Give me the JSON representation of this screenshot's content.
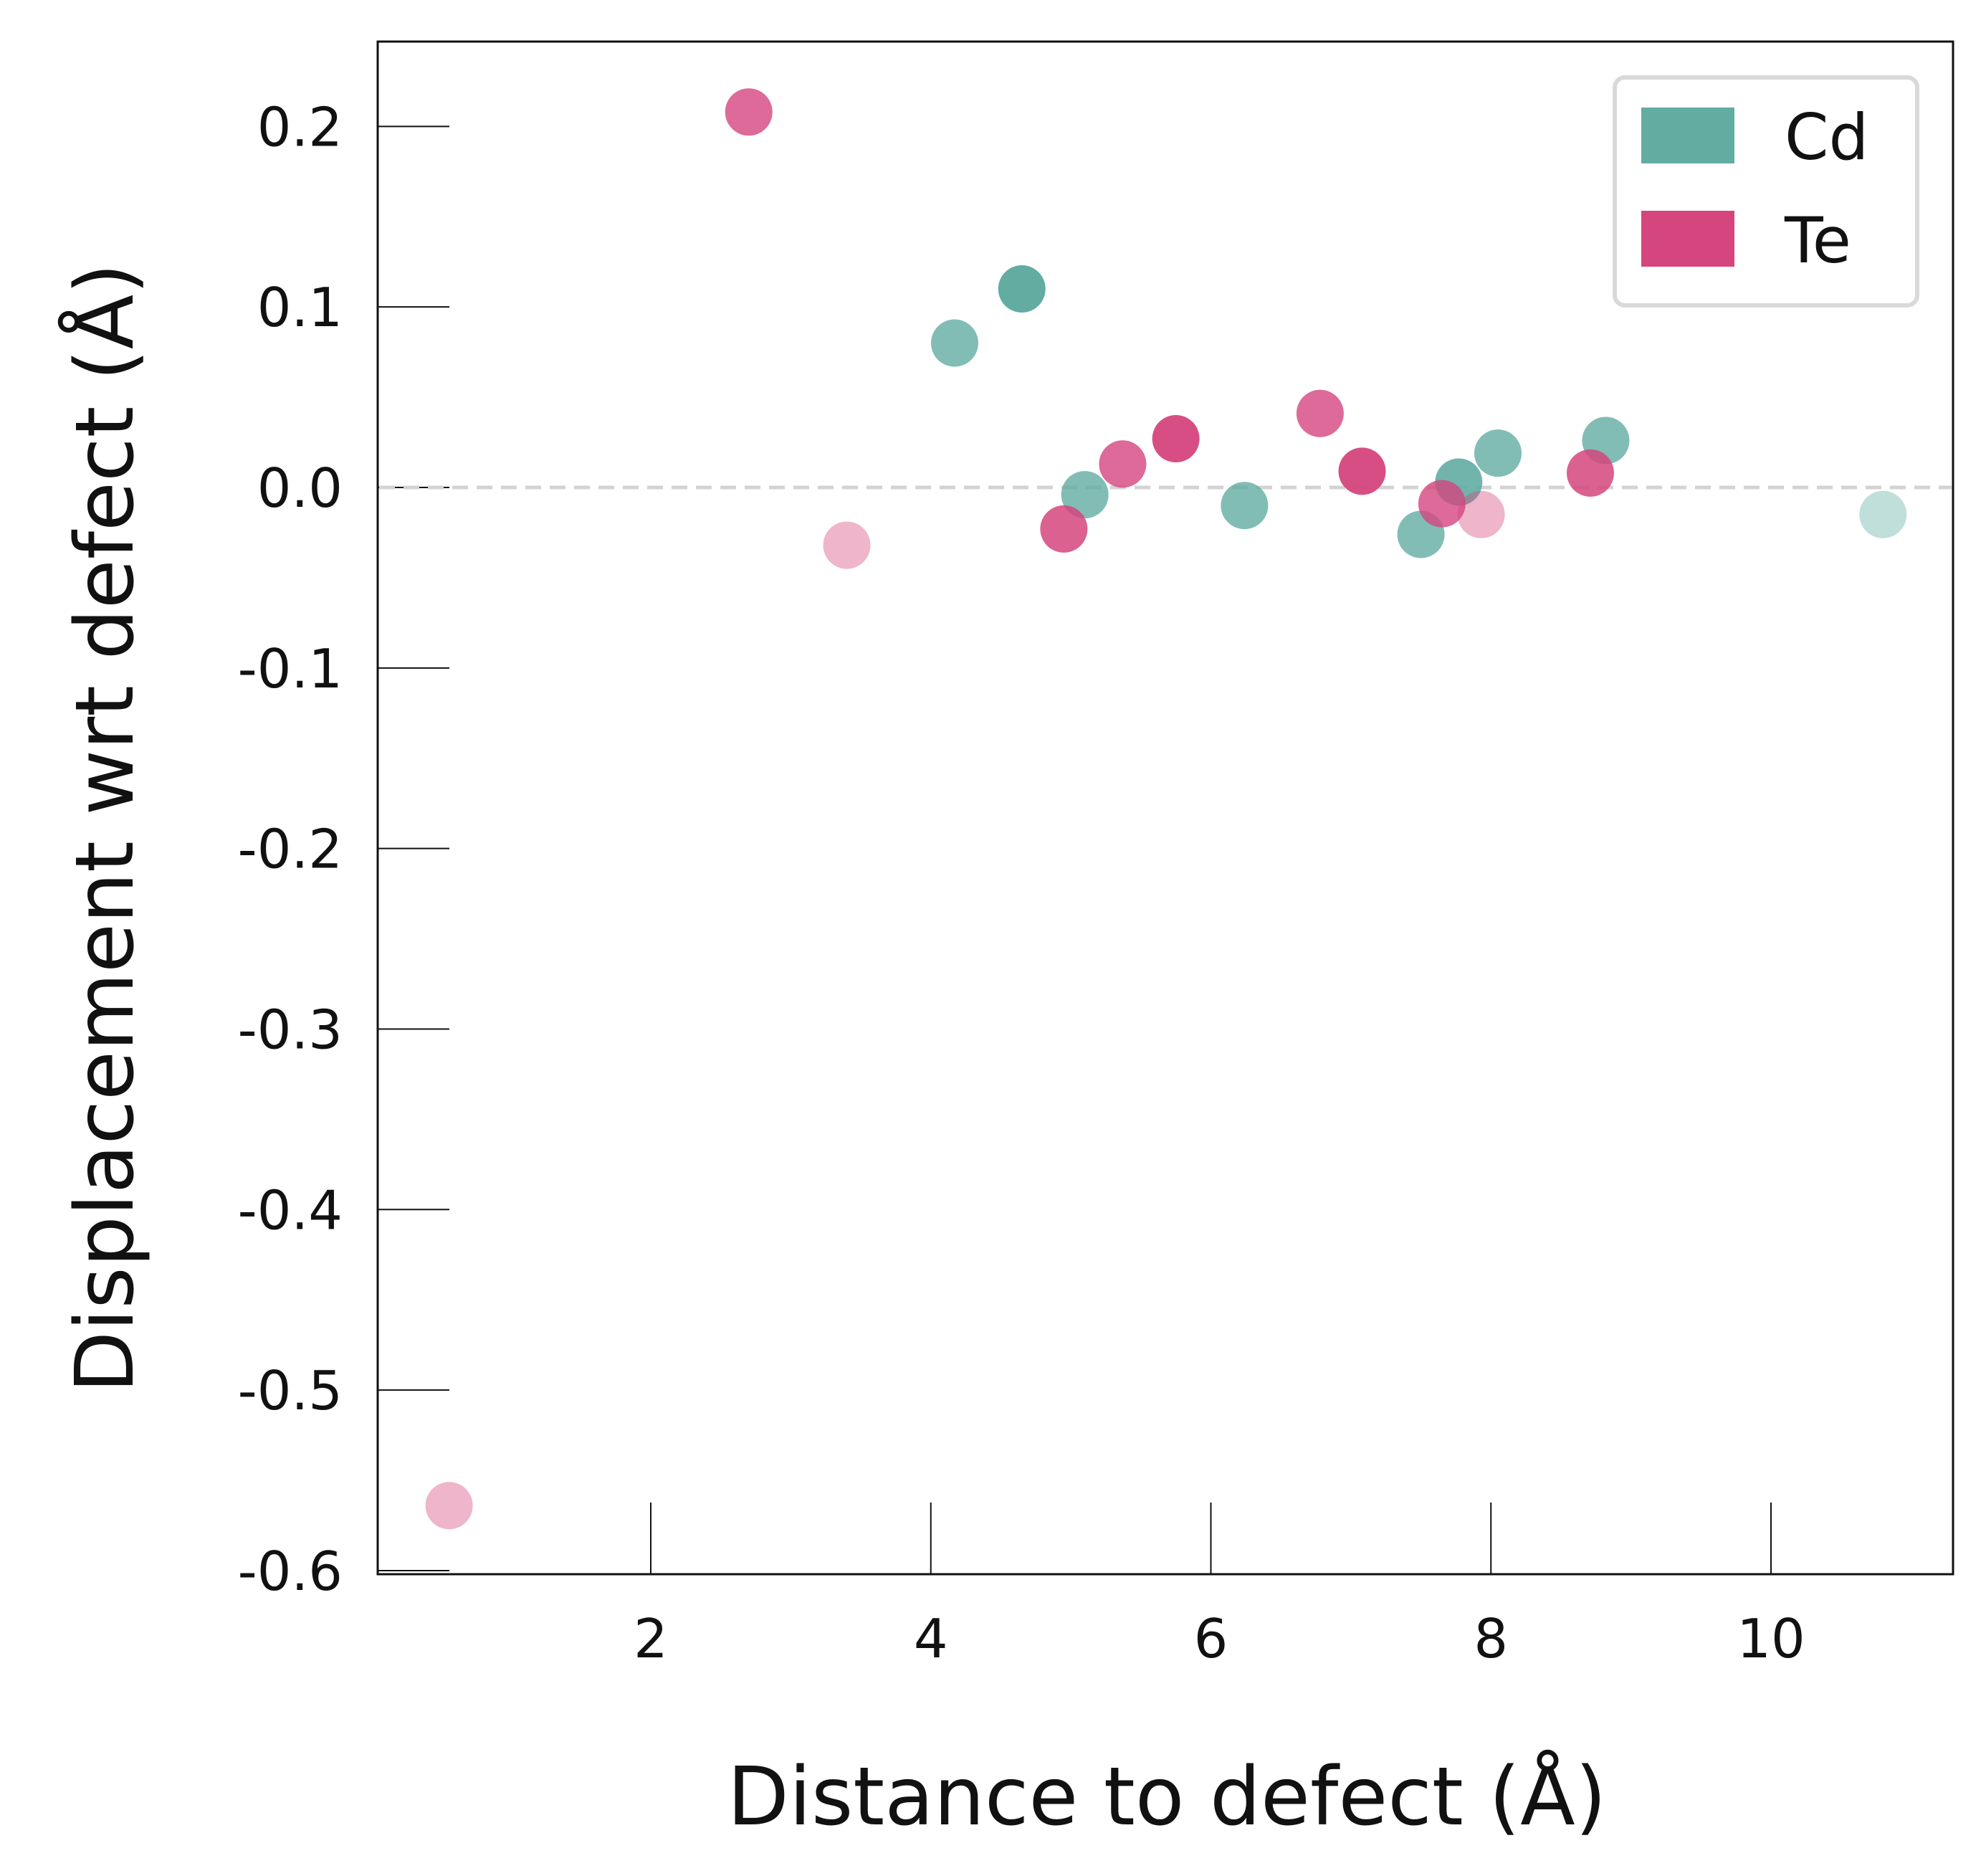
{
  "chart_data": {
    "type": "scatter",
    "xlabel": "Distance to defect (Å)",
    "ylabel": "Displacement wrt defect (Å)",
    "xlim": [
      0.05,
      11.3
    ],
    "ylim": [
      -0.602,
      0.247
    ],
    "x_ticks": [
      2,
      4,
      6,
      8,
      10
    ],
    "x_tick_labels": [
      "2",
      "4",
      "6",
      "8",
      "10"
    ],
    "y_ticks": [
      0.2,
      0.1,
      0.0,
      -0.1,
      -0.2,
      -0.3,
      -0.4,
      -0.5,
      -0.6
    ],
    "y_tick_labels": [
      "0.2",
      "0.1",
      "0.0",
      "-0.1",
      "-0.2",
      "-0.3",
      "-0.4",
      "-0.5",
      "-0.6"
    ],
    "reference_line": {
      "y": 0.0,
      "style": "dashed",
      "color": "#d3d3d3"
    },
    "grid": false,
    "legend_position": "top-right",
    "legend": [
      {
        "label": "Cd",
        "color": "#62aca2"
      },
      {
        "label": "Te",
        "color": "#d5457e"
      }
    ],
    "series": [
      {
        "name": "Cd",
        "color": "#62aca2",
        "points": [
          {
            "x": 4.17,
            "y": 0.08,
            "opacity": 0.8
          },
          {
            "x": 4.65,
            "y": 0.11,
            "opacity": 1.0
          },
          {
            "x": 5.1,
            "y": -0.004,
            "opacity": 0.8
          },
          {
            "x": 6.24,
            "y": -0.01,
            "opacity": 0.8
          },
          {
            "x": 7.5,
            "y": -0.026,
            "opacity": 0.8
          },
          {
            "x": 7.77,
            "y": 0.003,
            "opacity": 0.9
          },
          {
            "x": 8.05,
            "y": 0.019,
            "opacity": 0.8
          },
          {
            "x": 8.82,
            "y": 0.026,
            "opacity": 0.8
          },
          {
            "x": 10.8,
            "y": -0.015,
            "opacity": 0.4
          }
        ]
      },
      {
        "name": "Te",
        "color": "#d5457e",
        "points": [
          {
            "x": 0.56,
            "y": -0.564,
            "opacity": 0.4
          },
          {
            "x": 2.7,
            "y": 0.208,
            "opacity": 0.8
          },
          {
            "x": 3.4,
            "y": -0.032,
            "opacity": 0.4
          },
          {
            "x": 4.95,
            "y": -0.023,
            "opacity": 0.85
          },
          {
            "x": 5.37,
            "y": 0.013,
            "opacity": 0.8
          },
          {
            "x": 5.75,
            "y": 0.027,
            "opacity": 0.95
          },
          {
            "x": 6.78,
            "y": 0.041,
            "opacity": 0.8
          },
          {
            "x": 7.08,
            "y": 0.009,
            "opacity": 0.95
          },
          {
            "x": 7.65,
            "y": -0.009,
            "opacity": 0.8
          },
          {
            "x": 7.93,
            "y": -0.015,
            "opacity": 0.4
          },
          {
            "x": 8.71,
            "y": 0.008,
            "opacity": 0.85
          }
        ]
      }
    ]
  }
}
